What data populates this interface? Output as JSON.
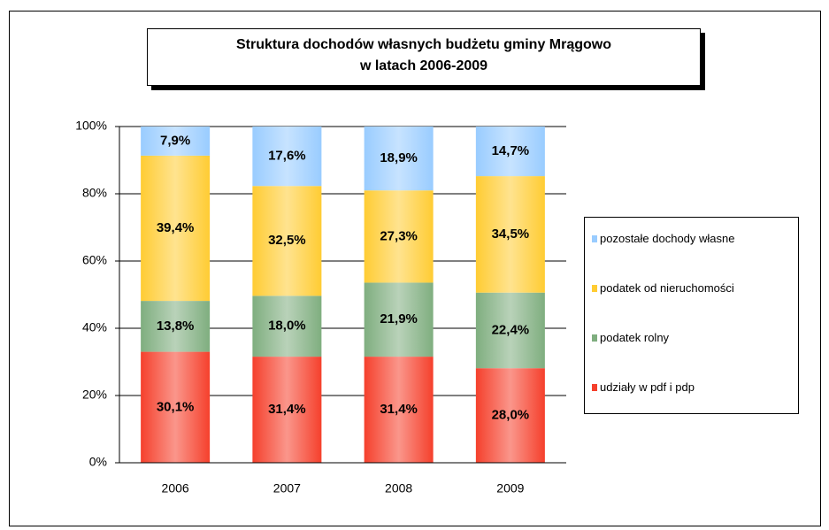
{
  "chart_data": {
    "type": "bar",
    "stacking": "percent",
    "title": [
      "Struktura dochodów  własnych budżetu  gminy Mrągowo",
      "w latach 2006-2009"
    ],
    "categories": [
      "2006",
      "2007",
      "2008",
      "2009"
    ],
    "series": [
      {
        "name": "udziały w pdf i pdp",
        "color": "#f5402c",
        "values": [
          30.1,
          31.4,
          31.4,
          28.0
        ],
        "value_labels": [
          "30,1%",
          "31,4%",
          "31,4%",
          "28,0%"
        ]
      },
      {
        "name": "podatek rolny",
        "color": "#7fae7f",
        "values": [
          13.8,
          18.0,
          21.9,
          22.4
        ],
        "value_labels": [
          "13,8%",
          "18,0%",
          "21,9%",
          "22,4%"
        ]
      },
      {
        "name": "podatek od nieruchomości",
        "color": "#ffcc33",
        "values": [
          39.4,
          32.5,
          27.3,
          34.5
        ],
        "value_labels": [
          "39,4%",
          "32,5%",
          "27,3%",
          "34,5%"
        ]
      },
      {
        "name": "pozostałe dochody własne",
        "color": "#99ccff",
        "values": [
          7.9,
          17.6,
          18.9,
          14.7
        ],
        "value_labels": [
          "7,9%",
          "17,6%",
          "18,9%",
          "14,7%"
        ]
      }
    ],
    "ylim": [
      0,
      100
    ],
    "yticks": [
      {
        "value": 0,
        "label": "0%"
      },
      {
        "value": 20,
        "label": "20%"
      },
      {
        "value": 40,
        "label": "40%"
      },
      {
        "value": 60,
        "label": "60%"
      },
      {
        "value": 80,
        "label": "80%"
      },
      {
        "value": 100,
        "label": "100%"
      }
    ],
    "grid": true,
    "legend": "right"
  }
}
